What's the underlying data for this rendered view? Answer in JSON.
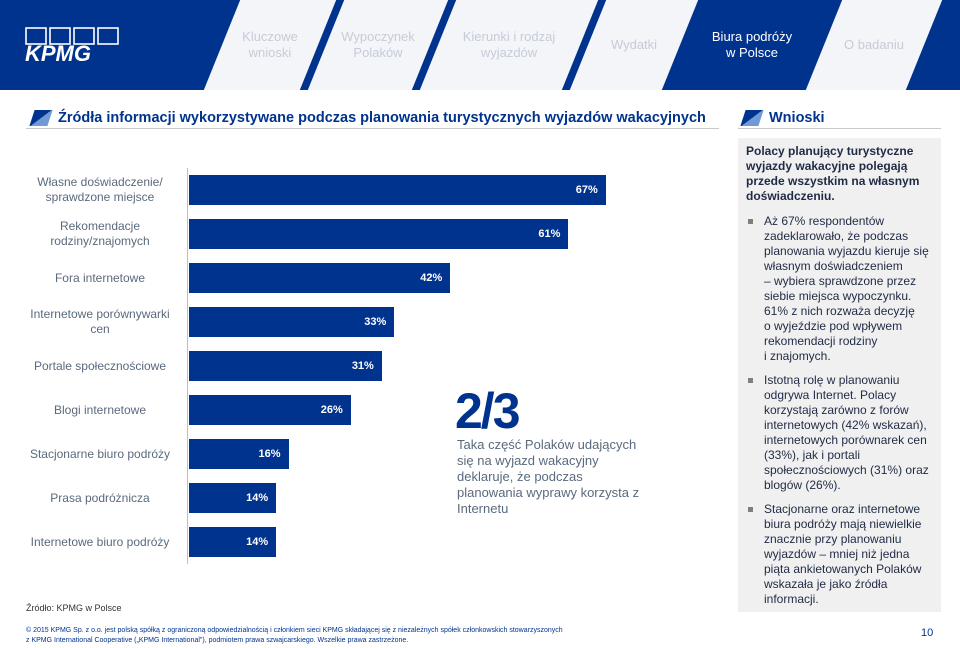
{
  "header": {
    "logo_text": "KPMG",
    "tabs": [
      {
        "label": "Kluczowe\nwnioski",
        "active": false
      },
      {
        "label": "Wypoczynek\nPolaków",
        "active": false
      },
      {
        "label": "Kierunki i rodzaj\nwyjazdów",
        "active": false
      },
      {
        "label": "Wydatki",
        "active": false
      },
      {
        "label": "Biura podróży\nw Polsce",
        "active": true
      },
      {
        "label": "O badaniu",
        "active": false
      }
    ]
  },
  "section_title": "Źródła informacji wykorzystywane podczas planowania turystycznych wyjazdów wakacyjnych",
  "conclusions_title": "Wnioski",
  "chart_data": {
    "type": "bar",
    "orientation": "horizontal",
    "categories": [
      "Własne doświadczenie/ sprawdzone miejsce",
      "Rekomendacje rodziny/znajomych",
      "Fora internetowe",
      "Internetowe porównywarki cen",
      "Portale społecznościowe",
      "Blogi internetowe",
      "Stacjonarne biuro podróży",
      "Prasa podróżnicza",
      "Internetowe biuro podróży"
    ],
    "values": [
      67,
      61,
      42,
      33,
      31,
      26,
      16,
      14,
      14
    ],
    "value_labels": [
      "67%",
      "61%",
      "42%",
      "33%",
      "31%",
      "26%",
      "16%",
      "14%",
      "14%"
    ],
    "xlim": [
      0,
      100
    ],
    "bar_color": "#00338d"
  },
  "highlight": {
    "value": "2/3",
    "description": "Taka część Polaków udających się na wyjazd wakacyjny deklaruje, że podczas planowania wyprawy korzysta z Internetu"
  },
  "panel": {
    "heading": "Polacy planujący turystyczne wyjazdy wakacyjne polegają przede wszystkim na własnym doświadczeniu.",
    "bullets": [
      "Aż 67% respondentów zadeklarowało, że podczas planowania wyjazdu kieruje się własnym doświadczeniem\n– wybiera sprawdzone przez siebie miejsca wypoczynku.\n61% z nich rozważa decyzję\no wyjeździe pod wpływem rekomendacji rodziny\ni znajomych.",
      "Istotną rolę w planowaniu odgrywa Internet. Polacy korzystają zarówno z forów internetowych (42% wskazań), internetowych porównarek cen (33%), jak i portali społecznościowych (31%) oraz blogów (26%).",
      "Stacjonarne oraz internetowe biura podróży mają niewielkie znacznie przy planowaniu wyjazdów – mniej niż jedna piąta ankietowanych Polaków wskazała je jako źródła informacji."
    ]
  },
  "source": "Źródło: KPMG w Polsce",
  "footer": {
    "line1": "© 2015 KPMG Sp. z o.o. jest polską spółką z ograniczoną odpowiedzialnością i członkiem sieci KPMG składającej się z niezależnych spółek członkowskich stowarzyszonych",
    "line2": "z KPMG International Cooperative („KPMG International\"), podmiotem prawa szwajcarskiego. Wszelkie prawa zastrzeżone."
  },
  "page_number": "10",
  "colors": {
    "brand": "#00338d",
    "panel_bg": "#f0f0f0"
  }
}
